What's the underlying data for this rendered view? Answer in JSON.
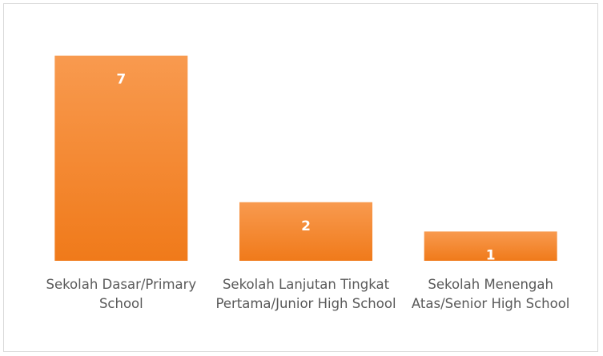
{
  "chart_data": {
    "type": "bar",
    "categories": [
      "Sekolah Dasar/Primary School",
      "Sekolah Lanjutan Tingkat Pertama/Junior High School",
      "Sekolah Menengah Atas/Senior High School"
    ],
    "values": [
      7,
      2,
      1
    ],
    "color": "#f58a33",
    "ylim": [
      0,
      8
    ]
  }
}
